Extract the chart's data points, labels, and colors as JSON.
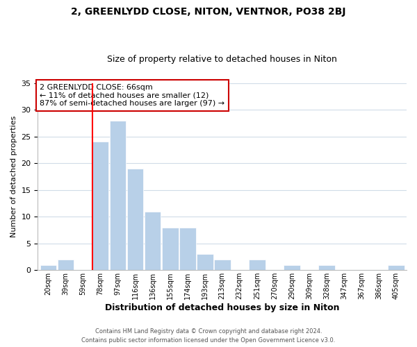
{
  "title": "2, GREENLYDD CLOSE, NITON, VENTNOR, PO38 2BJ",
  "subtitle": "Size of property relative to detached houses in Niton",
  "xlabel": "Distribution of detached houses by size in Niton",
  "ylabel": "Number of detached properties",
  "bar_color": "#b8d0e8",
  "bar_edge_color": "#ffffff",
  "background_color": "#ffffff",
  "grid_color": "#d0dce8",
  "tick_labels": [
    "20sqm",
    "39sqm",
    "59sqm",
    "78sqm",
    "97sqm",
    "116sqm",
    "136sqm",
    "155sqm",
    "174sqm",
    "193sqm",
    "213sqm",
    "232sqm",
    "251sqm",
    "270sqm",
    "290sqm",
    "309sqm",
    "328sqm",
    "347sqm",
    "367sqm",
    "386sqm",
    "405sqm"
  ],
  "bar_heights": [
    1,
    2,
    0,
    24,
    28,
    19,
    11,
    8,
    8,
    3,
    2,
    0,
    2,
    0,
    1,
    0,
    1,
    0,
    0,
    0,
    1
  ],
  "vline_color": "#ff0000",
  "vline_x": 2.53,
  "ylim": [
    0,
    35
  ],
  "yticks": [
    0,
    5,
    10,
    15,
    20,
    25,
    30,
    35
  ],
  "annotation_title": "2 GREENLYDD CLOSE: 66sqm",
  "annotation_line1": "← 11% of detached houses are smaller (12)",
  "annotation_line2": "87% of semi-detached houses are larger (97) →",
  "annotation_box_color": "#ffffff",
  "annotation_box_edge": "#cc0000",
  "footer1": "Contains HM Land Registry data © Crown copyright and database right 2024.",
  "footer2": "Contains public sector information licensed under the Open Government Licence v3.0."
}
